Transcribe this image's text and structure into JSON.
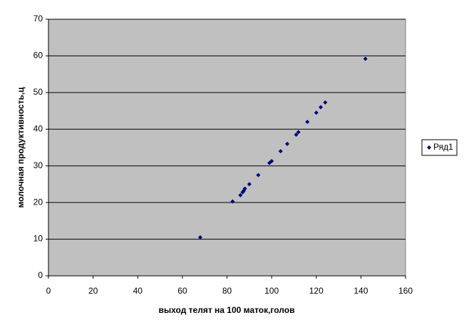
{
  "chart_data": {
    "type": "scatter",
    "xlabel": "выход телят на 100 маток,голов",
    "ylabel": "молочная продуктивность,ц",
    "series": [
      {
        "name": "Ряд1",
        "color": "#000080",
        "x": [
          68,
          82.5,
          86,
          87,
          87.5,
          88,
          90,
          94,
          99,
          100,
          104,
          107,
          111,
          112,
          116,
          120,
          122,
          124,
          142
        ],
        "values": [
          10.5,
          20.3,
          22,
          22.8,
          23.2,
          23.8,
          25,
          27.5,
          30.8,
          31.3,
          34,
          36,
          38.5,
          39.2,
          42,
          44.5,
          46,
          47.3,
          59.2
        ]
      }
    ],
    "xlim": [
      0,
      160
    ],
    "xticks": [
      0,
      20,
      40,
      60,
      80,
      100,
      120,
      140,
      160
    ],
    "ylim": [
      0,
      70
    ],
    "yticks": [
      0,
      10,
      20,
      30,
      40,
      50,
      60,
      70
    ],
    "grid": true,
    "legend": "right",
    "plot_background": "#c0c0c0"
  }
}
